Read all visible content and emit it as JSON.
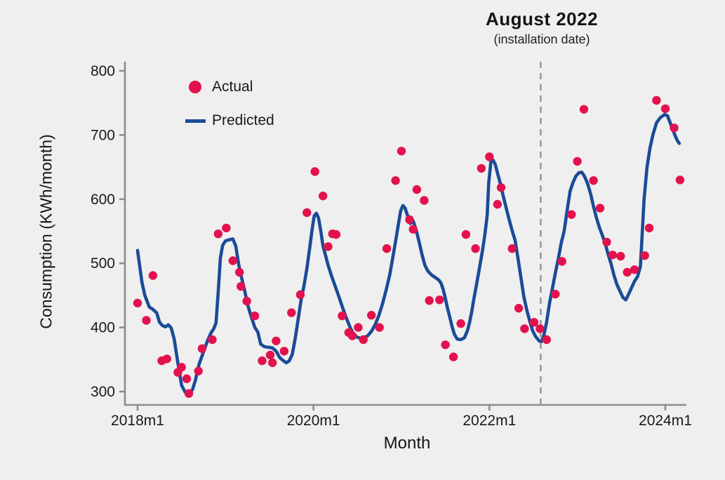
{
  "title": {
    "heading": "August 2022",
    "subtitle": "(installation date)"
  },
  "axes": {
    "y_label": "Consumption (KWh/month)",
    "x_label": "Month"
  },
  "legend": {
    "actual": "Actual",
    "predicted": "Predicted"
  },
  "colors": {
    "actual": "#e3124e",
    "predicted": "#1b4b97",
    "axis": "#8c8c8c",
    "dashed_line": "#9a9a9a",
    "background": "#efefef",
    "text": "#1a1a1a"
  },
  "chart_data": {
    "type": "scatter",
    "title": "August 2022 (installation date)",
    "xlabel": "Month",
    "ylabel": "Consumption (KWh/month)",
    "x_unit": "months since 2018m1",
    "ylim": [
      300,
      800
    ],
    "y_ticks": [
      300,
      400,
      500,
      600,
      700,
      800
    ],
    "x_ticks": [
      {
        "m": 0,
        "label": "2018m1"
      },
      {
        "m": 24,
        "label": "2020m1"
      },
      {
        "m": 48,
        "label": "2022m1"
      },
      {
        "m": 72,
        "label": "2024m1"
      }
    ],
    "annotation": {
      "label": "August 2022 (installation date)",
      "month_index": 55,
      "style": "dashed-vertical"
    },
    "grid": false,
    "legend_position": "top-left-inside",
    "series": [
      {
        "name": "Actual",
        "type": "scatter",
        "points": [
          [
            0,
            438
          ],
          [
            1.2,
            411
          ],
          [
            2.1,
            481
          ],
          [
            3.3,
            348
          ],
          [
            4,
            351
          ],
          [
            5.5,
            330
          ],
          [
            6,
            338
          ],
          [
            6.7,
            320
          ],
          [
            7,
            297
          ],
          [
            8.3,
            332
          ],
          [
            8.8,
            367
          ],
          [
            10.2,
            381
          ],
          [
            11,
            546
          ],
          [
            12.1,
            555
          ],
          [
            13,
            504
          ],
          [
            13.9,
            486
          ],
          [
            14.1,
            464
          ],
          [
            14.9,
            441
          ],
          [
            16,
            418
          ],
          [
            17,
            348
          ],
          [
            18.1,
            357
          ],
          [
            18.4,
            345
          ],
          [
            18.9,
            379
          ],
          [
            20,
            363
          ],
          [
            21,
            423
          ],
          [
            22.2,
            451
          ],
          [
            23.1,
            579
          ],
          [
            24.2,
            643
          ],
          [
            25.3,
            605
          ],
          [
            26,
            526
          ],
          [
            26.6,
            546
          ],
          [
            27.1,
            545
          ],
          [
            27.9,
            418
          ],
          [
            28.8,
            392
          ],
          [
            29.3,
            387
          ],
          [
            30.1,
            400
          ],
          [
            30.8,
            381
          ],
          [
            31.9,
            419
          ],
          [
            33,
            400
          ],
          [
            34,
            523
          ],
          [
            35.2,
            629
          ],
          [
            36,
            675
          ],
          [
            37.1,
            568
          ],
          [
            37.6,
            553
          ],
          [
            38.1,
            615
          ],
          [
            39.1,
            598
          ],
          [
            39.8,
            442
          ],
          [
            41.2,
            443
          ],
          [
            42,
            373
          ],
          [
            43.1,
            354
          ],
          [
            44.1,
            406
          ],
          [
            44.8,
            545
          ],
          [
            46.1,
            523
          ],
          [
            46.9,
            648
          ],
          [
            48,
            666
          ],
          [
            49.1,
            592
          ],
          [
            49.6,
            618
          ],
          [
            51.1,
            523
          ],
          [
            52,
            430
          ],
          [
            52.8,
            398
          ],
          [
            54.1,
            408
          ],
          [
            54.9,
            398
          ],
          [
            55.8,
            381
          ],
          [
            57,
            452
          ],
          [
            57.9,
            503
          ],
          [
            59.2,
            576
          ],
          [
            60,
            659
          ],
          [
            60.9,
            740
          ],
          [
            62.2,
            629
          ],
          [
            63.1,
            586
          ],
          [
            64,
            533
          ],
          [
            64.8,
            513
          ],
          [
            65.9,
            511
          ],
          [
            66.8,
            486
          ],
          [
            67.8,
            490
          ],
          [
            69.2,
            512
          ],
          [
            69.8,
            555
          ],
          [
            70.8,
            754
          ],
          [
            72,
            741
          ],
          [
            73.2,
            711
          ],
          [
            74,
            630
          ]
        ]
      },
      {
        "name": "Predicted",
        "type": "line",
        "points": [
          [
            0,
            520
          ],
          [
            0.6,
            470
          ],
          [
            1,
            450
          ],
          [
            1.6,
            432
          ],
          [
            2,
            429
          ],
          [
            2.6,
            423
          ],
          [
            3,
            408
          ],
          [
            3.4,
            403
          ],
          [
            3.8,
            401
          ],
          [
            4.2,
            404
          ],
          [
            4.6,
            399
          ],
          [
            5,
            382
          ],
          [
            5.5,
            345
          ],
          [
            6,
            310
          ],
          [
            6.5,
            299
          ],
          [
            7,
            297
          ],
          [
            7.5,
            303
          ],
          [
            7.9,
            318
          ],
          [
            8.4,
            343
          ],
          [
            9,
            362
          ],
          [
            9.5,
            378
          ],
          [
            10,
            391
          ],
          [
            10.4,
            398
          ],
          [
            10.7,
            407
          ],
          [
            11,
            455
          ],
          [
            11.3,
            508
          ],
          [
            11.6,
            528
          ],
          [
            12,
            535
          ],
          [
            12.6,
            537
          ],
          [
            13,
            538
          ],
          [
            13.4,
            527
          ],
          [
            13.8,
            498
          ],
          [
            14.2,
            477
          ],
          [
            14.6,
            458
          ],
          [
            15,
            436
          ],
          [
            15.5,
            417
          ],
          [
            16,
            400
          ],
          [
            16.4,
            393
          ],
          [
            16.8,
            374
          ],
          [
            17.3,
            370
          ],
          [
            17.9,
            369
          ],
          [
            18.4,
            368
          ],
          [
            18.9,
            363
          ],
          [
            19.4,
            353
          ],
          [
            19.9,
            348
          ],
          [
            20.3,
            345
          ],
          [
            20.7,
            348
          ],
          [
            21.1,
            358
          ],
          [
            21.5,
            382
          ],
          [
            21.9,
            412
          ],
          [
            22.3,
            442
          ],
          [
            22.7,
            465
          ],
          [
            23.1,
            492
          ],
          [
            23.5,
            525
          ],
          [
            23.8,
            552
          ],
          [
            24.1,
            574
          ],
          [
            24.4,
            578
          ],
          [
            24.7,
            570
          ],
          [
            25,
            550
          ],
          [
            25.3,
            527
          ],
          [
            25.6,
            514
          ],
          [
            26,
            497
          ],
          [
            26.5,
            479
          ],
          [
            27,
            463
          ],
          [
            27.5,
            447
          ],
          [
            28,
            430
          ],
          [
            28.5,
            414
          ],
          [
            29,
            400
          ],
          [
            29.4,
            391
          ],
          [
            29.9,
            385
          ],
          [
            30.4,
            383
          ],
          [
            30.9,
            384
          ],
          [
            31.4,
            387
          ],
          [
            31.9,
            394
          ],
          [
            32.4,
            404
          ],
          [
            32.9,
            418
          ],
          [
            33.4,
            436
          ],
          [
            33.9,
            458
          ],
          [
            34.4,
            482
          ],
          [
            34.8,
            508
          ],
          [
            35.2,
            534
          ],
          [
            35.6,
            562
          ],
          [
            35.9,
            582
          ],
          [
            36.2,
            590
          ],
          [
            36.5,
            586
          ],
          [
            36.9,
            572
          ],
          [
            37.2,
            562
          ],
          [
            37.6,
            566
          ],
          [
            38,
            552
          ],
          [
            38.4,
            534
          ],
          [
            38.8,
            514
          ],
          [
            39.2,
            497
          ],
          [
            39.6,
            488
          ],
          [
            40.1,
            482
          ],
          [
            40.6,
            478
          ],
          [
            41.1,
            474
          ],
          [
            41.4,
            469
          ],
          [
            41.7,
            459
          ],
          [
            42,
            445
          ],
          [
            42.3,
            429
          ],
          [
            42.6,
            416
          ],
          [
            42.9,
            402
          ],
          [
            43.2,
            390
          ],
          [
            43.6,
            382
          ],
          [
            44.1,
            381
          ],
          [
            44.6,
            384
          ],
          [
            45,
            395
          ],
          [
            45.3,
            408
          ],
          [
            45.6,
            425
          ],
          [
            45.9,
            446
          ],
          [
            46.2,
            464
          ],
          [
            46.5,
            483
          ],
          [
            46.8,
            503
          ],
          [
            47.1,
            523
          ],
          [
            47.4,
            546
          ],
          [
            47.7,
            575
          ],
          [
            47.9,
            625
          ],
          [
            48.2,
            658
          ],
          [
            48.5,
            661
          ],
          [
            48.8,
            654
          ],
          [
            49.1,
            641
          ],
          [
            49.5,
            624
          ],
          [
            49.9,
            604
          ],
          [
            50.3,
            586
          ],
          [
            50.7,
            568
          ],
          [
            51.1,
            551
          ],
          [
            51.5,
            536
          ],
          [
            51.9,
            508
          ],
          [
            52.3,
            478
          ],
          [
            52.7,
            448
          ],
          [
            53.1,
            427
          ],
          [
            53.5,
            410
          ],
          [
            53.9,
            395
          ],
          [
            54.3,
            386
          ],
          [
            54.8,
            379
          ],
          [
            55.1,
            378
          ],
          [
            55.4,
            386
          ],
          [
            55.8,
            408
          ],
          [
            56.2,
            438
          ],
          [
            56.6,
            461
          ],
          [
            57,
            485
          ],
          [
            57.4,
            507
          ],
          [
            57.8,
            532
          ],
          [
            58.2,
            550
          ],
          [
            58.6,
            582
          ],
          [
            59,
            612
          ],
          [
            59.4,
            626
          ],
          [
            59.8,
            636
          ],
          [
            60.2,
            641
          ],
          [
            60.6,
            642
          ],
          [
            61,
            635
          ],
          [
            61.4,
            624
          ],
          [
            61.8,
            609
          ],
          [
            62.2,
            589
          ],
          [
            62.6,
            571
          ],
          [
            63,
            556
          ],
          [
            63.4,
            544
          ],
          [
            63.8,
            531
          ],
          [
            64.2,
            514
          ],
          [
            64.6,
            499
          ],
          [
            65,
            481
          ],
          [
            65.4,
            467
          ],
          [
            65.8,
            457
          ],
          [
            66.2,
            447
          ],
          [
            66.6,
            443
          ],
          [
            67,
            452
          ],
          [
            67.4,
            462
          ],
          [
            67.8,
            472
          ],
          [
            68.2,
            479
          ],
          [
            68.6,
            495
          ],
          [
            69.1,
            600
          ],
          [
            69.5,
            650
          ],
          [
            69.9,
            679
          ],
          [
            70.3,
            700
          ],
          [
            70.8,
            719
          ],
          [
            71.3,
            727
          ],
          [
            71.9,
            732
          ],
          [
            72.3,
            730
          ],
          [
            72.7,
            718
          ],
          [
            73.2,
            703
          ],
          [
            73.6,
            692
          ],
          [
            73.9,
            687
          ]
        ]
      }
    ]
  }
}
